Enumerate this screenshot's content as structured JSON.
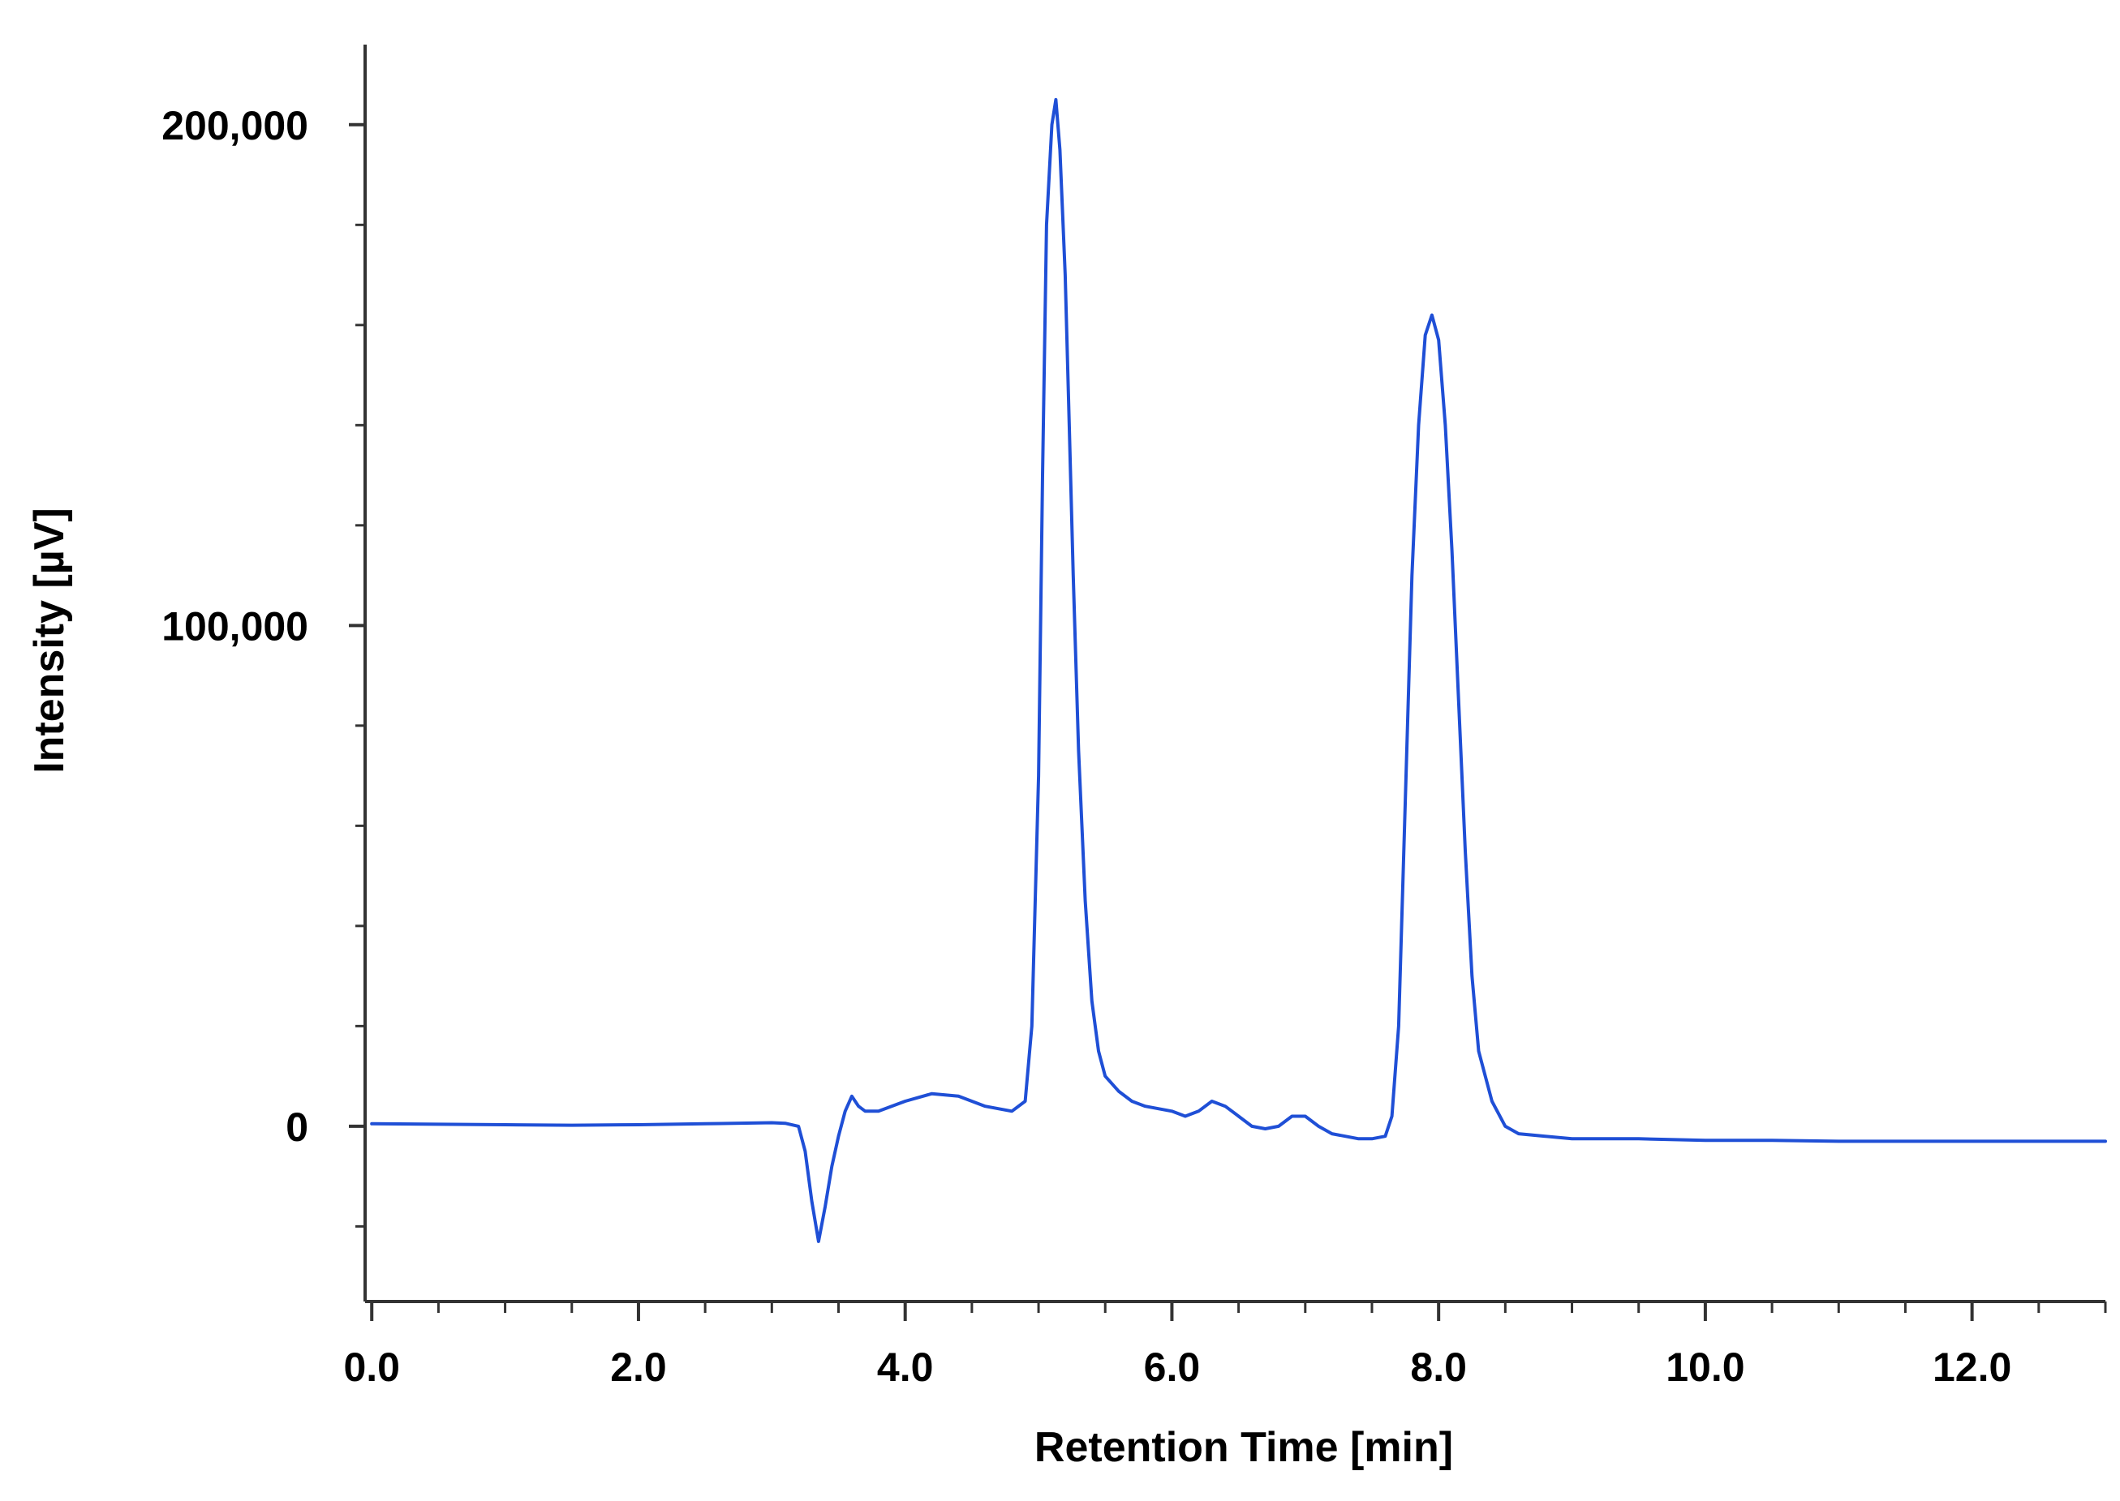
{
  "chart_data": {
    "type": "line",
    "title": "",
    "xlabel": "Retention Time [min]",
    "ylabel": "Intensity [µV]",
    "xlim": [
      -0.05,
      13.0
    ],
    "ylim": [
      -35000,
      216000
    ],
    "x_ticks": [
      {
        "value": 0.0,
        "label": "0.0"
      },
      {
        "value": 2.0,
        "label": "2.0"
      },
      {
        "value": 4.0,
        "label": "4.0"
      },
      {
        "value": 6.0,
        "label": "6.0"
      },
      {
        "value": 8.0,
        "label": "8.0"
      },
      {
        "value": 10.0,
        "label": "10.0"
      },
      {
        "value": 12.0,
        "label": "12.0"
      }
    ],
    "x_minor_step": 0.5,
    "y_ticks": [
      {
        "value": 0,
        "label": "0"
      },
      {
        "value": 100000,
        "label": "100,000"
      },
      {
        "value": 200000,
        "label": "200,000"
      }
    ],
    "y_minor_step": 20000,
    "grid": false,
    "series": [
      {
        "color": "#1f4fd6",
        "x": [
          0.0,
          0.5,
          1.0,
          1.5,
          2.0,
          2.5,
          3.0,
          3.1,
          3.2,
          3.25,
          3.3,
          3.35,
          3.4,
          3.45,
          3.5,
          3.55,
          3.6,
          3.65,
          3.7,
          3.8,
          4.0,
          4.2,
          4.4,
          4.6,
          4.8,
          4.9,
          4.95,
          5.0,
          5.03,
          5.06,
          5.1,
          5.13,
          5.16,
          5.2,
          5.23,
          5.26,
          5.3,
          5.35,
          5.4,
          5.45,
          5.5,
          5.6,
          5.7,
          5.8,
          6.0,
          6.1,
          6.2,
          6.3,
          6.4,
          6.5,
          6.6,
          6.7,
          6.8,
          6.9,
          7.0,
          7.1,
          7.2,
          7.3,
          7.4,
          7.5,
          7.6,
          7.65,
          7.7,
          7.75,
          7.8,
          7.85,
          7.9,
          7.95,
          8.0,
          8.05,
          8.1,
          8.15,
          8.2,
          8.25,
          8.3,
          8.4,
          8.5,
          8.6,
          8.8,
          9.0,
          9.5,
          10.0,
          10.5,
          11.0,
          11.5,
          12.0,
          12.5,
          13.0
        ],
        "y": [
          500,
          400,
          300,
          200,
          300,
          500,
          700,
          600,
          0,
          -5000,
          -15000,
          -23000,
          -16000,
          -8000,
          -2000,
          3000,
          6000,
          4000,
          3000,
          3000,
          5000,
          6500,
          6000,
          4000,
          3000,
          5000,
          20000,
          70000,
          130000,
          180000,
          200000,
          205000,
          195000,
          170000,
          140000,
          110000,
          75000,
          45000,
          25000,
          15000,
          10000,
          7000,
          5000,
          4000,
          3000,
          2000,
          3000,
          5000,
          4000,
          2000,
          0,
          -500,
          0,
          2000,
          2000,
          0,
          -1500,
          -2000,
          -2500,
          -2500,
          -2000,
          2000,
          20000,
          65000,
          110000,
          140000,
          158000,
          162000,
          157000,
          140000,
          115000,
          85000,
          55000,
          30000,
          15000,
          5000,
          0,
          -1500,
          -2000,
          -2500,
          -2500,
          -2800,
          -2800,
          -3000,
          -3000,
          -3000,
          -3000,
          -3000
        ]
      }
    ]
  }
}
